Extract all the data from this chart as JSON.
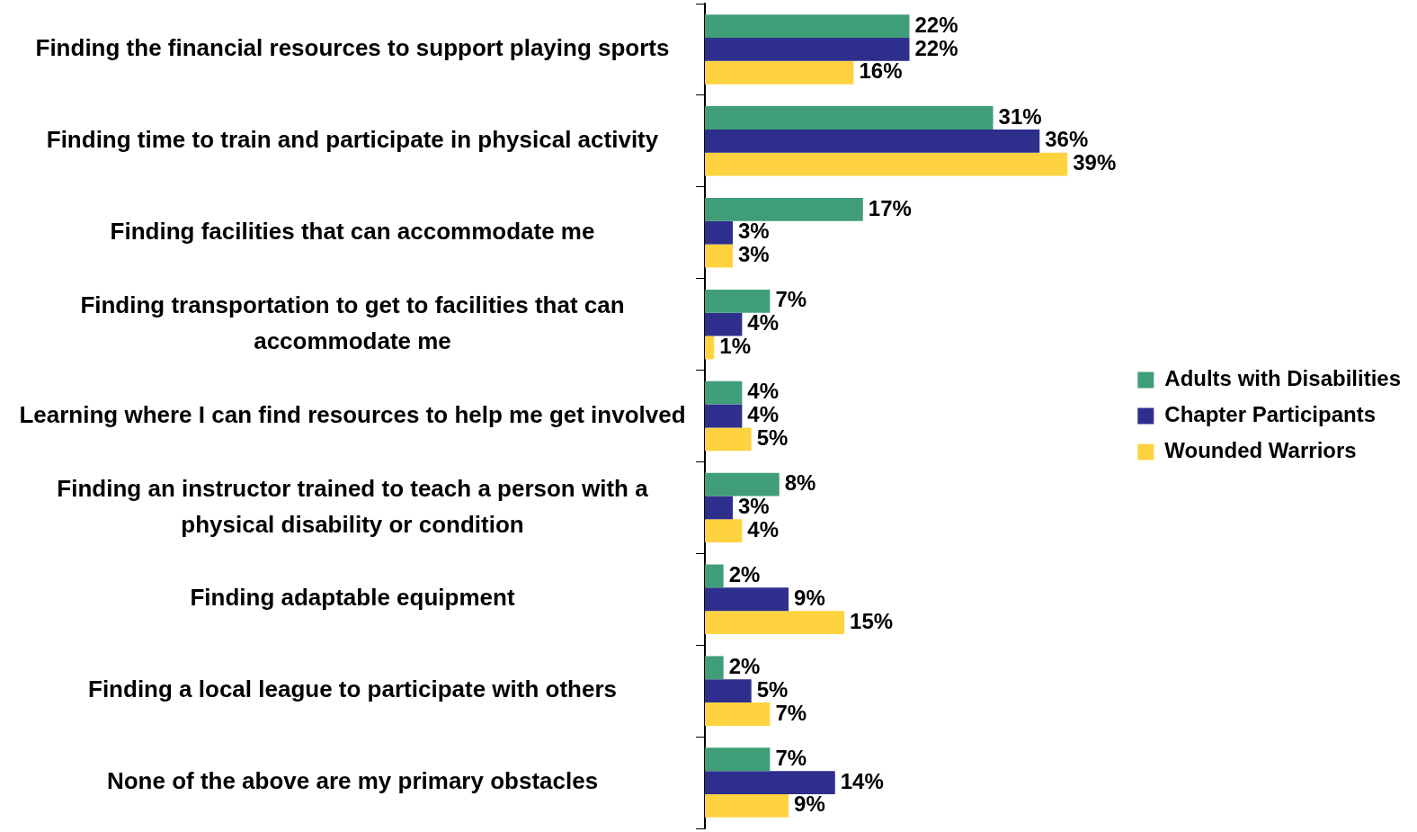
{
  "chart_data": {
    "type": "bar",
    "orientation": "horizontal",
    "categories": [
      "Finding the financial resources to support playing sports",
      "Finding time to train and participate in physical activity",
      "Finding facilities that can accommodate me",
      "Finding transportation to get to facilities that can accommodate me",
      "Learning where I can find resources to help me get involved",
      "Finding an instructor trained to teach a person with a physical disability or condition",
      "Finding adaptable equipment",
      "Finding a local league to participate with others",
      "None of the above are my primary obstacles"
    ],
    "series": [
      {
        "name": "Adults with Disabilities",
        "color": "#3f9e78",
        "values": [
          22,
          31,
          17,
          7,
          4,
          8,
          2,
          2,
          7
        ],
        "value_labels": [
          "22%",
          "31%",
          "17%",
          "7%",
          "4%",
          "8%",
          "2%",
          "2%",
          "7%"
        ]
      },
      {
        "name": "Chapter Participants",
        "color": "#2e2e8c",
        "values": [
          22,
          36,
          3,
          4,
          4,
          3,
          9,
          5,
          14
        ],
        "value_labels": [
          "22%",
          "36%",
          "3%",
          "4%",
          "4%",
          "3%",
          "9%",
          "5%",
          "14%"
        ]
      },
      {
        "name": "Wounded Warriors",
        "color": "#ffd340",
        "values": [
          16,
          39,
          3,
          1,
          5,
          4,
          15,
          7,
          9
        ],
        "value_labels": [
          "16%",
          "39%",
          "3%",
          "1%",
          "5%",
          "4%",
          "15%",
          "7%",
          "9%"
        ]
      }
    ],
    "legend": "right"
  }
}
